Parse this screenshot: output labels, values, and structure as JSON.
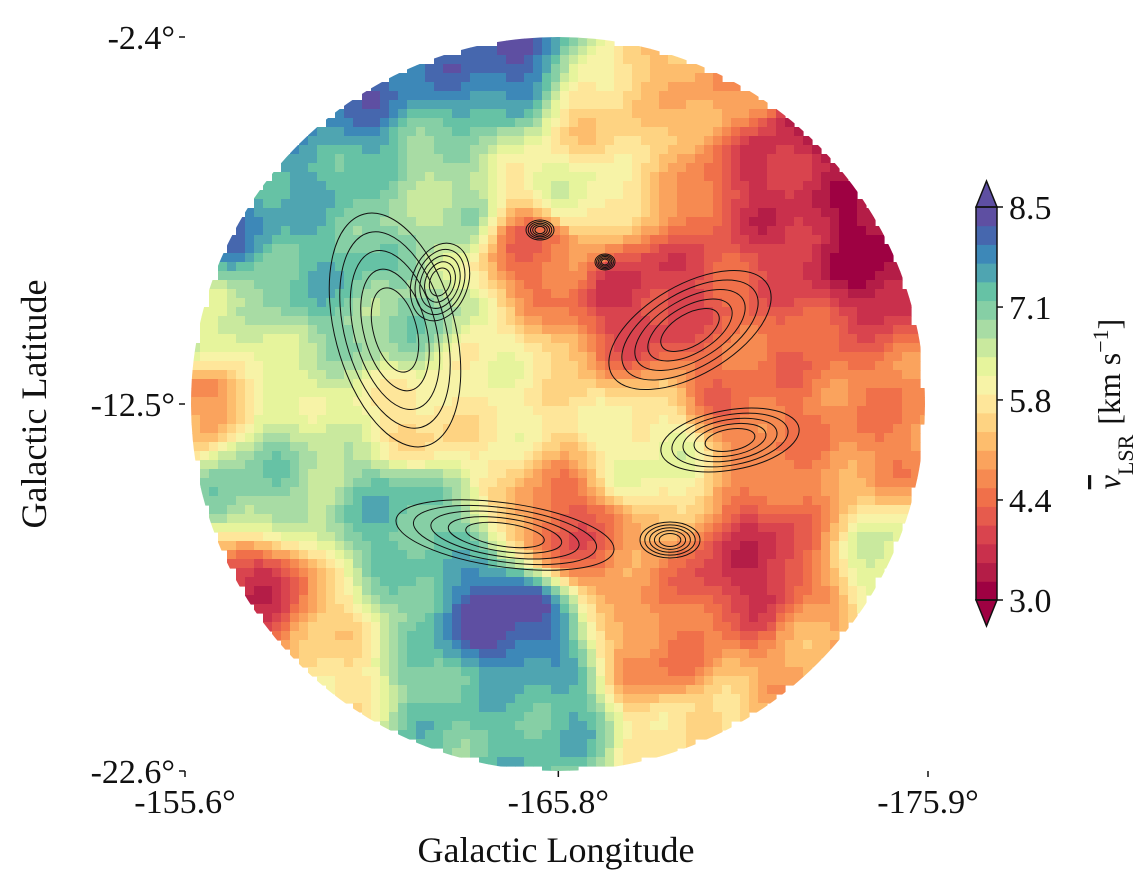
{
  "chart_data": {
    "type": "heatmap",
    "title": "",
    "xlabel": "Galactic Longitude",
    "ylabel": "Galactic Latitude",
    "x_ticks": [
      "-155.6°",
      "-165.8°",
      "-175.9°"
    ],
    "y_ticks": [
      "-2.4°",
      "-12.5°",
      "-22.6°"
    ],
    "xlim": [
      -155.6,
      -175.9
    ],
    "ylim": [
      -22.6,
      -2.4
    ],
    "colorbar": {
      "label_main": "v",
      "label_sub": "LSR",
      "label_units": "[km s",
      "label_exp": "−1",
      "label_close": "]",
      "colormap": "Spectral",
      "range": [
        3.0,
        8.5
      ],
      "ticks": [
        "3.0",
        "4.4",
        "5.8",
        "7.1",
        "8.5"
      ],
      "tick_values": [
        3.0,
        4.4,
        5.8,
        7.1,
        8.5
      ],
      "levels": 20,
      "extend": "both",
      "colors": [
        "#9e0142",
        "#b41d47",
        "#c9304c",
        "#d9444e",
        "#e65b4d",
        "#f0704a",
        "#f68a51",
        "#faa35d",
        "#fdbd6d",
        "#fed382",
        "#fee69a",
        "#f7f3a7",
        "#e6f49c",
        "#c9e99e",
        "#a8dca4",
        "#86cfa5",
        "#66c2a5",
        "#4fa5b1",
        "#3d88b8",
        "#4667ae",
        "#5e4fa2"
      ]
    },
    "velocity_blobs": [
      {
        "l": -174.8,
        "b": -7.6,
        "v": 3.0
      },
      {
        "l": -173.2,
        "b": -4.6,
        "v": 3.1
      },
      {
        "l": -172.2,
        "b": -6.2,
        "v": 3.6
      },
      {
        "l": -168.0,
        "b": -9.5,
        "v": 3.7
      },
      {
        "l": -170.8,
        "b": -12.0,
        "v": 4.4
      },
      {
        "l": -175.2,
        "b": -13.0,
        "v": 4.6
      },
      {
        "l": -171.2,
        "b": -17.2,
        "v": 3.6
      },
      {
        "l": -166.2,
        "b": -16.0,
        "v": 4.2
      },
      {
        "l": -168.7,
        "b": -19.5,
        "v": 4.6
      },
      {
        "l": -170.5,
        "b": -3.6,
        "v": 5.0
      },
      {
        "l": -165.3,
        "b": -8.2,
        "v": 4.3
      },
      {
        "l": -167.2,
        "b": -5.0,
        "v": 5.5
      },
      {
        "l": -157.2,
        "b": -18.0,
        "v": 3.6
      },
      {
        "l": -158.6,
        "b": -20.2,
        "v": 5.6
      },
      {
        "l": -164.2,
        "b": -2.9,
        "v": 8.2
      },
      {
        "l": -160.2,
        "b": -3.5,
        "v": 8.1
      },
      {
        "l": -158.2,
        "b": -5.6,
        "v": 7.6
      },
      {
        "l": -156.4,
        "b": -7.2,
        "v": 8.0
      },
      {
        "l": -164.5,
        "b": -18.4,
        "v": 8.5
      },
      {
        "l": -163.5,
        "b": -21.2,
        "v": 7.3
      },
      {
        "l": -165.6,
        "b": -21.0,
        "v": 7.5
      },
      {
        "l": -161.5,
        "b": -15.5,
        "v": 7.4
      },
      {
        "l": -157.3,
        "b": -14.6,
        "v": 7.1
      },
      {
        "l": -161.8,
        "b": -10.2,
        "v": 7.0
      },
      {
        "l": -159.4,
        "b": -8.6,
        "v": 7.4
      },
      {
        "l": -156.2,
        "b": -10.6,
        "v": 6.4
      },
      {
        "l": -162.2,
        "b": -13.0,
        "v": 5.6
      },
      {
        "l": -164.0,
        "b": -12.0,
        "v": 6.0
      },
      {
        "l": -168.3,
        "b": -14.0,
        "v": 6.2
      },
      {
        "l": -175.0,
        "b": -17.2,
        "v": 6.4
      },
      {
        "l": -166.3,
        "b": -6.8,
        "v": 6.3
      },
      {
        "l": -155.8,
        "b": -12.5,
        "v": 4.7
      },
      {
        "l": -162.8,
        "b": -7.0,
        "v": 6.8
      },
      {
        "l": -169.5,
        "b": -21.6,
        "v": 5.8
      },
      {
        "l": -172.8,
        "b": -19.2,
        "v": 5.0
      }
    ]
  }
}
